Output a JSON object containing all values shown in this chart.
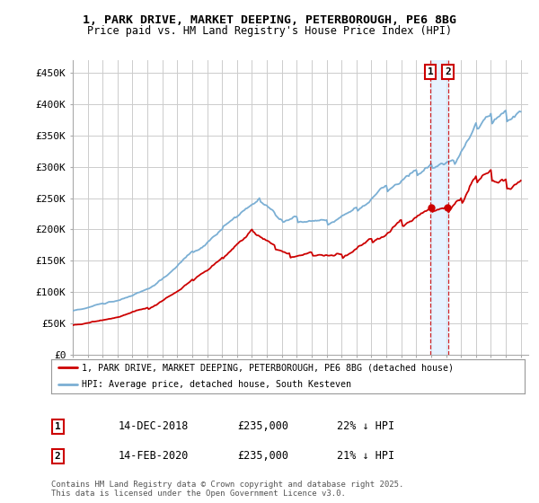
{
  "title_line1": "1, PARK DRIVE, MARKET DEEPING, PETERBOROUGH, PE6 8BG",
  "title_line2": "Price paid vs. HM Land Registry's House Price Index (HPI)",
  "ylabel_ticks": [
    "£0",
    "£50K",
    "£100K",
    "£150K",
    "£200K",
    "£250K",
    "£300K",
    "£350K",
    "£400K",
    "£450K"
  ],
  "ytick_vals": [
    0,
    50000,
    100000,
    150000,
    200000,
    250000,
    300000,
    350000,
    400000,
    450000
  ],
  "ylim": [
    0,
    470000
  ],
  "xlim_start": 1995.0,
  "xlim_end": 2025.5,
  "color_price": "#cc0000",
  "color_hpi": "#7bafd4",
  "color_vline": "#cc0000",
  "color_shade": "#ddeeff",
  "legend_label1": "1, PARK DRIVE, MARKET DEEPING, PETERBOROUGH, PE6 8BG (detached house)",
  "legend_label2": "HPI: Average price, detached house, South Kesteven",
  "annotation1_date": "14-DEC-2018",
  "annotation1_price": "£235,000",
  "annotation1_hpi": "22% ↓ HPI",
  "annotation2_date": "14-FEB-2020",
  "annotation2_price": "£235,000",
  "annotation2_hpi": "21% ↓ HPI",
  "vline1_x": 2018.96,
  "vline2_x": 2020.12,
  "footer": "Contains HM Land Registry data © Crown copyright and database right 2025.\nThis data is licensed under the Open Government Licence v3.0.",
  "bg_color": "#ffffff",
  "grid_color": "#cccccc"
}
